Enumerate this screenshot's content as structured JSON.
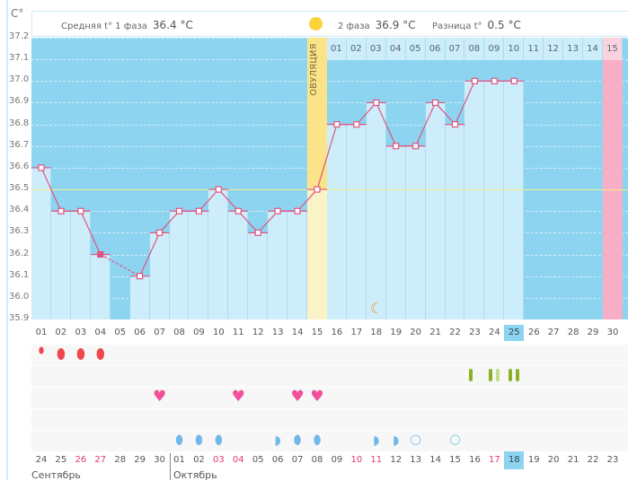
{
  "header": {
    "y_unit": "C°",
    "phase1_label": "Средняя t° 1 фаза",
    "phase1_value": "36.4 °C",
    "phase2_label": "2 фаза",
    "phase2_value": "36.9 °C",
    "diff_label": "Разница t°",
    "diff_value": "0.5 °C"
  },
  "ovulation_label": "ОВУЛЯЦИЯ",
  "colors": {
    "plot_bg": "#8dd4f1",
    "bar": "#cdedfb",
    "line": "#e0547f",
    "ovulation": "#fbe38a",
    "period_next": "#f8aec4",
    "coverline": "#f2ee8a"
  },
  "chart_data": {
    "type": "line",
    "title": "",
    "ylabel": "C°",
    "ylim": [
      35.9,
      37.2
    ],
    "yticks": [
      "37.2",
      "37.1",
      "37.0",
      "36.9",
      "36.8",
      "36.7",
      "36.6",
      "36.5",
      "36.4",
      "36.3",
      "36.2",
      "36.1",
      "36.0",
      "35.9"
    ],
    "coverline": 36.5,
    "ovulation_day": 15,
    "next_period_day": 30,
    "current_day": 25,
    "cycle_days": [
      "01",
      "02",
      "03",
      "04",
      "05",
      "06",
      "07",
      "08",
      "09",
      "10",
      "11",
      "12",
      "13",
      "14",
      "15",
      "16",
      "17",
      "18",
      "19",
      "20",
      "21",
      "22",
      "23",
      "24",
      "25",
      "26",
      "27",
      "28",
      "29",
      "30"
    ],
    "temperatures": [
      36.6,
      36.4,
      36.4,
      36.2,
      null,
      36.1,
      36.3,
      36.4,
      36.4,
      36.5,
      36.4,
      36.3,
      36.4,
      36.4,
      36.5,
      36.8,
      36.8,
      36.9,
      36.7,
      36.7,
      36.9,
      36.8,
      37.0,
      37.0,
      37.0,
      null,
      null,
      null,
      null,
      null
    ],
    "phase2_day_labels": [
      "01",
      "02",
      "03",
      "04",
      "05",
      "06",
      "07",
      "08",
      "09",
      "10",
      "11",
      "12",
      "13",
      "14",
      "15"
    ],
    "calendar_dates": [
      "24",
      "25",
      "26",
      "27",
      "28",
      "29",
      "30",
      "01",
      "02",
      "03",
      "04",
      "05",
      "06",
      "07",
      "08",
      "09",
      "10",
      "11",
      "12",
      "13",
      "14",
      "15",
      "16",
      "17",
      "18",
      "19",
      "20",
      "21",
      "22",
      "23"
    ],
    "red_dates": [
      3,
      4,
      10,
      11,
      17,
      18,
      24
    ],
    "months": [
      "Сентябрь",
      "Октябрь"
    ],
    "moon_day": 18,
    "bleeding": {
      "1": "small",
      "2": "large",
      "3": "large",
      "4": "large"
    },
    "tests": {
      "23": [
        "dark"
      ],
      "24": [
        "dark",
        "light"
      ],
      "25": [
        "dark",
        "dark"
      ]
    },
    "intercourse_days": [
      7,
      11,
      14,
      15
    ],
    "discharge": {
      "8": "drop",
      "9": "drop",
      "10": "drop",
      "13": "partial",
      "14": "drop",
      "15": "round",
      "18": "partial",
      "19": "partial",
      "20": "outline",
      "22": "outline"
    }
  }
}
